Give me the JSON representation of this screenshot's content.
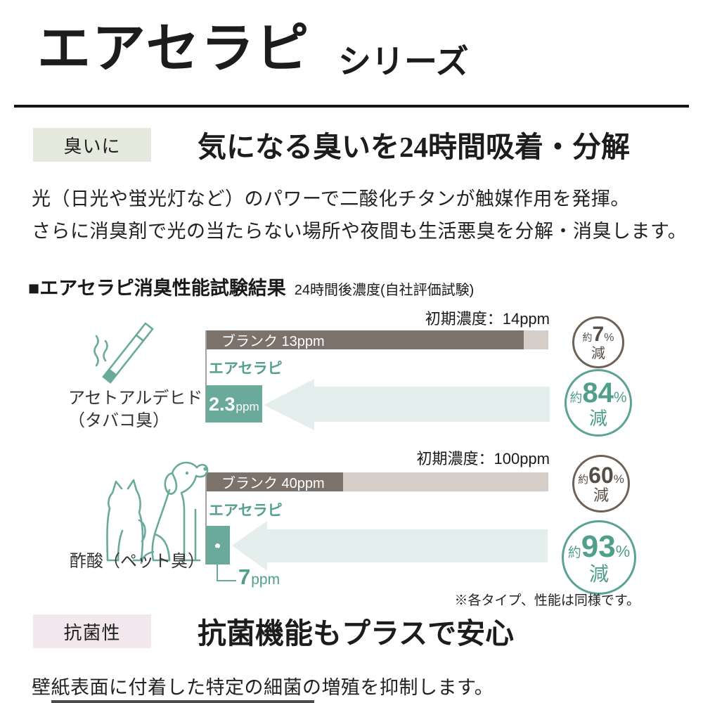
{
  "header": {
    "title": "エアセラピ",
    "series": "シリーズ"
  },
  "odor_section": {
    "badge": "臭いに",
    "headline": "気になる臭いを24時間吸着・分解",
    "body_line1": "光（日光や蛍光灯など）のパワーで二酸化チタンが触媒作用を発揮。",
    "body_line2": "さらに消臭剤で光の当たらない場所や夜間も生活悪臭を分解・消臭します。"
  },
  "results_section": {
    "heading": "■エアセラピ消臭性能試験結果",
    "heading_note": "24時間後濃度(自社評価試験)",
    "footnote": "※各タイプ、性能は同様です。"
  },
  "antibacterial_section": {
    "badge": "抗菌性",
    "headline": "抗菌機能もプラスで安心",
    "body": "壁紙表面に付着した特定の細菌の増殖を抑制します。"
  },
  "colors": {
    "teal_bar": "#69aa9a",
    "teal_text": "#55a08e",
    "arrow_fill": "#e4eeec",
    "blank_bar_dark": "#7b726b",
    "blank_bar_light": "#d5cec8",
    "brown_circle": "#6e6156",
    "odor_badge_bg": "#e6e9de",
    "antibacterial_badge_bg": "#f3e8ee"
  },
  "chart_data": [
    {
      "type": "bar",
      "group_line1": "アセトアルデヒド",
      "group_line2": "（タバコ臭）",
      "icon": "cigarette-icon",
      "initial_label": "初期濃度：14ppm",
      "initial_ppm": 14,
      "unit": "ppm",
      "xlim": [
        0,
        14
      ],
      "series": [
        {
          "name": "ブランク",
          "value": 13,
          "bar_label": "ブランク 13ppm",
          "reduction": {
            "prefix": "約",
            "percent": "7",
            "sign": "%",
            "suffix": "減"
          }
        },
        {
          "name": "エアセラピ",
          "value": 2.3,
          "value_text": "2.3",
          "reduction": {
            "prefix": "約",
            "percent": "84",
            "sign": "%",
            "suffix": "減"
          }
        }
      ]
    },
    {
      "type": "bar",
      "group_line1": "酢酸（ペット臭）",
      "group_line2": "",
      "icon": "dog-cat-icon",
      "initial_label": "初期濃度：100ppm",
      "initial_ppm": 100,
      "unit": "ppm",
      "xlim": [
        0,
        100
      ],
      "series": [
        {
          "name": "ブランク",
          "value": 40,
          "bar_label": "ブランク 40ppm",
          "reduction": {
            "prefix": "約",
            "percent": "60",
            "sign": "%",
            "suffix": "減"
          }
        },
        {
          "name": "エアセラピ",
          "value": 7,
          "value_text": "7",
          "reduction": {
            "prefix": "約",
            "percent": "93",
            "sign": "%",
            "suffix": "減"
          }
        }
      ]
    }
  ]
}
